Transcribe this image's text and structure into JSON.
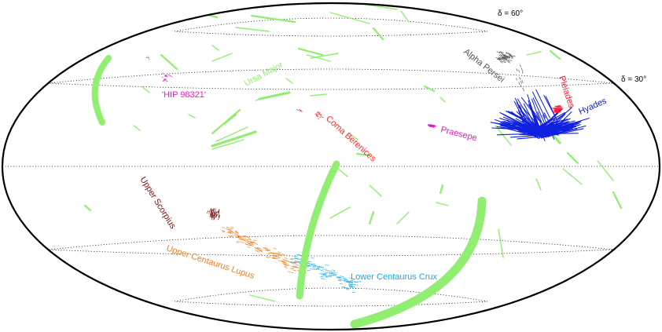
{
  "projection": {
    "parallel_labels": [
      {
        "text": "δ = 60°"
      },
      {
        "text": "δ = 30°"
      }
    ]
  },
  "colors": {
    "background_tracks": "#90ee70",
    "alpha_persei": "#555555",
    "pleiades": "#ff1a2e",
    "hyades": "#1020e0",
    "coma_berenices": "#ff2a2a",
    "praesepe": "#e020c0",
    "hip98321": "#e020c0",
    "upper_scorpius": "#7a1410",
    "upper_centaurus_lupus": "#f08020",
    "lower_centaurus_crux": "#20a8e0",
    "ursa_major": "#90ee70"
  },
  "groups": [
    {
      "id": "alpha-persei",
      "label": "Alpha Persei"
    },
    {
      "id": "pleiades",
      "label": "Pleiades"
    },
    {
      "id": "hyades",
      "label": "Hyades"
    },
    {
      "id": "ursa-major",
      "label": "Ursa Major"
    },
    {
      "id": "hip98321",
      "label": "'HIP 98321'"
    },
    {
      "id": "coma-berenices",
      "label": "Coma Berenices"
    },
    {
      "id": "praesepe",
      "label": "Praesepe"
    },
    {
      "id": "upper-scorpius",
      "label": "Upper Scorpius"
    },
    {
      "id": "upper-centaurus-lupus",
      "label": "Upper Centaurus Lupus"
    },
    {
      "id": "lower-centaurus-crux",
      "label": "Lower Centaurus Crux"
    }
  ]
}
